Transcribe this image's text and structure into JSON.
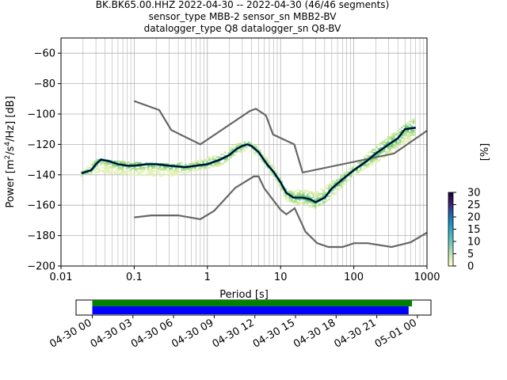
{
  "figure": {
    "title_lines": [
      "BK.BK65.00.HHZ   2022-04-30 -- 2022-04-30  (46/46 segments)",
      "sensor_type MBB-2 sensor_sn MBB2-BV",
      "datalogger_type Q8 datalogger_sn Q8-BV"
    ]
  },
  "chart_data": [
    {
      "type": "heatmap",
      "subtype": "probabilistic power spectral density",
      "xlabel": "Period [s]",
      "ylabel_parts": [
        "Power [m",
        "2",
        "/s",
        "4",
        "/Hz] [dB]"
      ],
      "xscale": "log",
      "xlim": [
        0.01,
        1000
      ],
      "ylim": [
        -200,
        -50
      ],
      "x_ticks": [
        0.01,
        0.1,
        1,
        10,
        100,
        1000
      ],
      "x_tick_labels": [
        "0.01",
        "0.1",
        "1",
        "10",
        "100",
        "1000"
      ],
      "y_ticks": [
        -60,
        -80,
        -100,
        -120,
        -140,
        -160,
        -180,
        -200
      ],
      "y_tick_labels": [
        "−60",
        "−80",
        "−100",
        "−120",
        "−140",
        "−160",
        "−180",
        "−200"
      ],
      "grid": true,
      "colorbar": {
        "label": "[%]",
        "range": [
          0,
          30
        ],
        "ticks": [
          0,
          5,
          10,
          15,
          20,
          25,
          30
        ],
        "tick_labels": [
          "0",
          "5",
          "10",
          "15",
          "20",
          "25",
          "30"
        ],
        "colormap": [
          "#ffffcc",
          "#c7e9b4",
          "#7fcdbb",
          "#41b6c4",
          "#1d91c0",
          "#225ea8",
          "#3b1f6e",
          "#1a0033"
        ]
      },
      "mode_line": {
        "color": "#000000",
        "points": [
          [
            0.019,
            -139
          ],
          [
            0.022,
            -138
          ],
          [
            0.026,
            -137
          ],
          [
            0.03,
            -133
          ],
          [
            0.035,
            -130
          ],
          [
            0.045,
            -131
          ],
          [
            0.06,
            -133
          ],
          [
            0.08,
            -134
          ],
          [
            0.1,
            -134
          ],
          [
            0.15,
            -133
          ],
          [
            0.2,
            -133
          ],
          [
            0.3,
            -134
          ],
          [
            0.5,
            -135
          ],
          [
            0.7,
            -134
          ],
          [
            1.0,
            -133
          ],
          [
            1.5,
            -130
          ],
          [
            2.0,
            -127
          ],
          [
            2.5,
            -123
          ],
          [
            3.0,
            -121
          ],
          [
            3.5,
            -120
          ],
          [
            4.0,
            -121
          ],
          [
            5.0,
            -125
          ],
          [
            6.5,
            -133
          ],
          [
            8.0,
            -138
          ],
          [
            10,
            -145
          ],
          [
            12,
            -152
          ],
          [
            15,
            -155
          ],
          [
            20,
            -155
          ],
          [
            25,
            -156
          ],
          [
            30,
            -158
          ],
          [
            40,
            -155
          ],
          [
            50,
            -149
          ],
          [
            70,
            -143
          ],
          [
            100,
            -137
          ],
          [
            150,
            -131
          ],
          [
            200,
            -126
          ],
          [
            300,
            -120
          ],
          [
            400,
            -116
          ],
          [
            500,
            -110
          ],
          [
            700,
            -109
          ]
        ]
      },
      "spread_top": {
        "points": [
          [
            0.019,
            -138
          ],
          [
            0.03,
            -130
          ],
          [
            0.05,
            -131
          ],
          [
            0.1,
            -131
          ],
          [
            0.3,
            -133
          ],
          [
            0.7,
            -131
          ],
          [
            1.5,
            -126
          ],
          [
            2.5,
            -119
          ],
          [
            3.5,
            -118
          ],
          [
            5,
            -122
          ],
          [
            8,
            -134
          ],
          [
            12,
            -150
          ],
          [
            20,
            -150
          ],
          [
            30,
            -152
          ],
          [
            50,
            -144
          ],
          [
            100,
            -134
          ],
          [
            200,
            -121
          ],
          [
            400,
            -110
          ],
          [
            700,
            -102
          ]
        ]
      },
      "spread_bottom": {
        "points": [
          [
            0.019,
            -141
          ],
          [
            0.03,
            -138
          ],
          [
            0.05,
            -139
          ],
          [
            0.1,
            -140
          ],
          [
            0.3,
            -141
          ],
          [
            0.7,
            -137
          ],
          [
            1.5,
            -134
          ],
          [
            2.5,
            -126
          ],
          [
            3.5,
            -124
          ],
          [
            5,
            -128
          ],
          [
            8,
            -141
          ],
          [
            12,
            -157
          ],
          [
            20,
            -160
          ],
          [
            30,
            -162
          ],
          [
            50,
            -155
          ],
          [
            100,
            -140
          ],
          [
            200,
            -132
          ],
          [
            400,
            -123
          ],
          [
            700,
            -114
          ]
        ]
      },
      "noise_models": [
        {
          "name": "high noise model",
          "color": "#666666",
          "points": [
            [
              0.1,
              -91.5
            ],
            [
              0.22,
              -97.4
            ],
            [
              0.32,
              -110.5
            ],
            [
              0.8,
              -120
            ],
            [
              3.8,
              -98
            ],
            [
              4.6,
              -96.5
            ],
            [
              6.3,
              -101
            ],
            [
              7.9,
              -113.5
            ],
            [
              15.4,
              -120
            ],
            [
              20,
              -138.5
            ],
            [
              354.8,
              -126
            ],
            [
              1000,
              -111
            ]
          ]
        },
        {
          "name": "low noise model",
          "color": "#666666",
          "points": [
            [
              0.1,
              -168
            ],
            [
              0.17,
              -166.7
            ],
            [
              0.4,
              -166.7
            ],
            [
              0.8,
              -169.2
            ],
            [
              1.24,
              -163.7
            ],
            [
              2.4,
              -148.6
            ],
            [
              4.3,
              -141.1
            ],
            [
              5,
              -141.1
            ],
            [
              6,
              -149
            ],
            [
              10,
              -163
            ],
            [
              12,
              -166
            ],
            [
              15.6,
              -162
            ],
            [
              21.9,
              -177.5
            ],
            [
              31.6,
              -185
            ],
            [
              45,
              -187.5
            ],
            [
              70,
              -187.5
            ],
            [
              101,
              -185
            ],
            [
              154,
              -185
            ],
            [
              328,
              -187.5
            ],
            [
              600,
              -184.4
            ],
            [
              1000,
              -178
            ]
          ]
        }
      ],
      "density_color": "#7ec97a"
    },
    {
      "type": "bar",
      "subtype": "data coverage timeline",
      "xlabel": "",
      "x_tick_labels": [
        "04-30 00",
        "04-30 03",
        "04-30 06",
        "04-30 09",
        "04-30 12",
        "04-30 15",
        "04-30 18",
        "04-30 21",
        "05-01 00"
      ],
      "x_ticks_hours": [
        0,
        3,
        6,
        9,
        12,
        15,
        18,
        21,
        24
      ],
      "xlim_hours": [
        -1.2,
        25.0
      ],
      "series": [
        {
          "color": "#008000",
          "start_hour": 0.0,
          "end_hour": 23.6
        },
        {
          "color": "#0000ff",
          "start_hour": 0.0,
          "end_hour": 23.35
        }
      ]
    }
  ]
}
